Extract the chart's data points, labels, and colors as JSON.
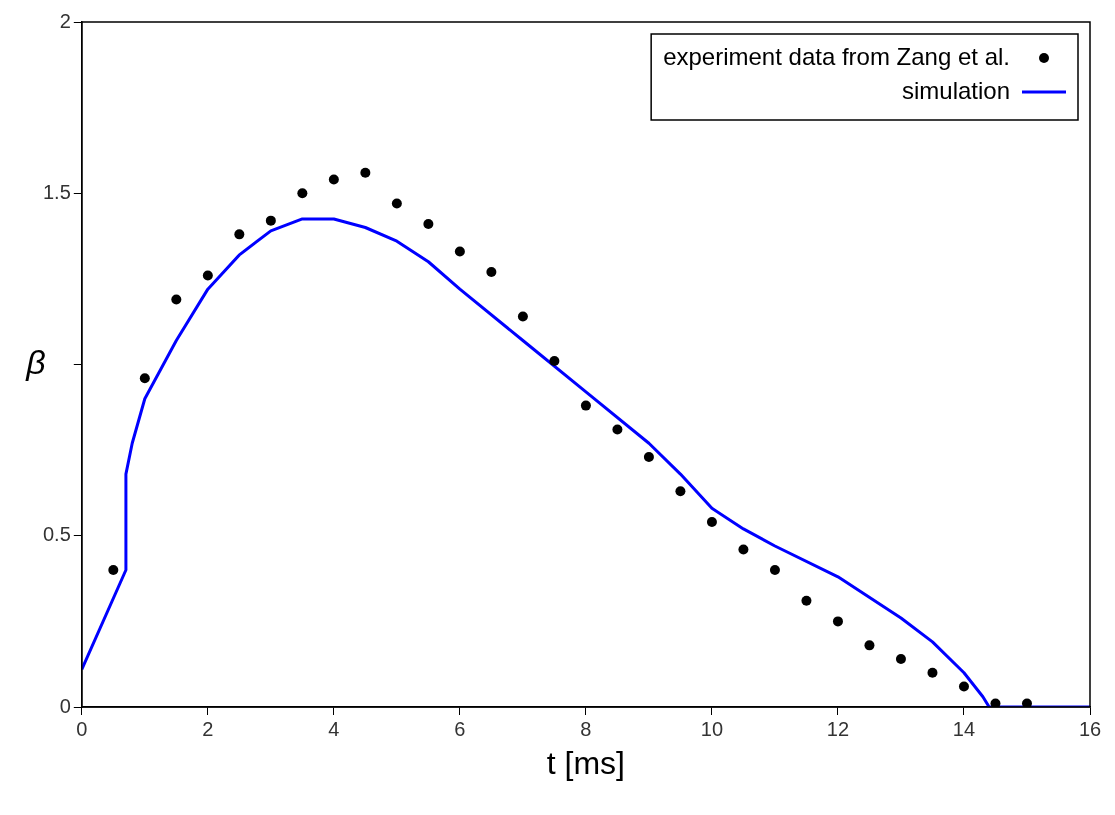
{
  "chart_data": {
    "type": "line",
    "xlabel": "t [ms]",
    "ylabel": "β",
    "xlim": [
      0,
      16
    ],
    "xticks": [
      0,
      2,
      4,
      6,
      8,
      10,
      12,
      14,
      16
    ],
    "ylim": [
      0,
      2
    ],
    "yticks": [
      0,
      0.5,
      {
        "value": 1,
        "label": null
      },
      1.5,
      2
    ],
    "grid": false,
    "legend": "top right",
    "series": [
      {
        "name": "experiment data from Zang et al.",
        "type": "scatter",
        "marker": "circle",
        "color": "#000000",
        "x": [
          0.5,
          1,
          1.5,
          2,
          2.5,
          3,
          3.5,
          4,
          4.5,
          5,
          5.5,
          6,
          6.5,
          7,
          7.5,
          8,
          8.5,
          9,
          9.5,
          10,
          10.5,
          11,
          11.5,
          12,
          12.5,
          13,
          13.5,
          14,
          14.5,
          15
        ],
        "values": [
          0.4,
          0.96,
          1.19,
          1.26,
          1.38,
          1.42,
          1.5,
          1.54,
          1.56,
          1.47,
          1.41,
          1.33,
          1.27,
          1.14,
          1.01,
          0.88,
          0.81,
          0.73,
          0.63,
          0.54,
          0.46,
          0.4,
          0.31,
          0.25,
          0.18,
          0.14,
          0.1,
          0.06,
          0.01,
          0.01
        ]
      },
      {
        "name": "simulation",
        "type": "line",
        "marker": "none",
        "line_style": "solid",
        "color": "#0000ff",
        "x": [
          0,
          0.7,
          0.7,
          0.8,
          1,
          1.5,
          2,
          2.5,
          3,
          3.5,
          4,
          4.5,
          5,
          5.5,
          6,
          7,
          8,
          9,
          9.5,
          10,
          10.5,
          11,
          12,
          13,
          13.5,
          14,
          14.3,
          14.4,
          16
        ],
        "values": [
          0.11,
          0.4,
          0.68,
          0.77,
          0.9,
          1.07,
          1.22,
          1.32,
          1.39,
          1.425,
          1.425,
          1.4,
          1.36,
          1.3,
          1.22,
          1.07,
          0.92,
          0.77,
          0.68,
          0.58,
          0.52,
          0.47,
          0.38,
          0.26,
          0.19,
          0.1,
          0.03,
          0,
          0
        ]
      }
    ]
  }
}
